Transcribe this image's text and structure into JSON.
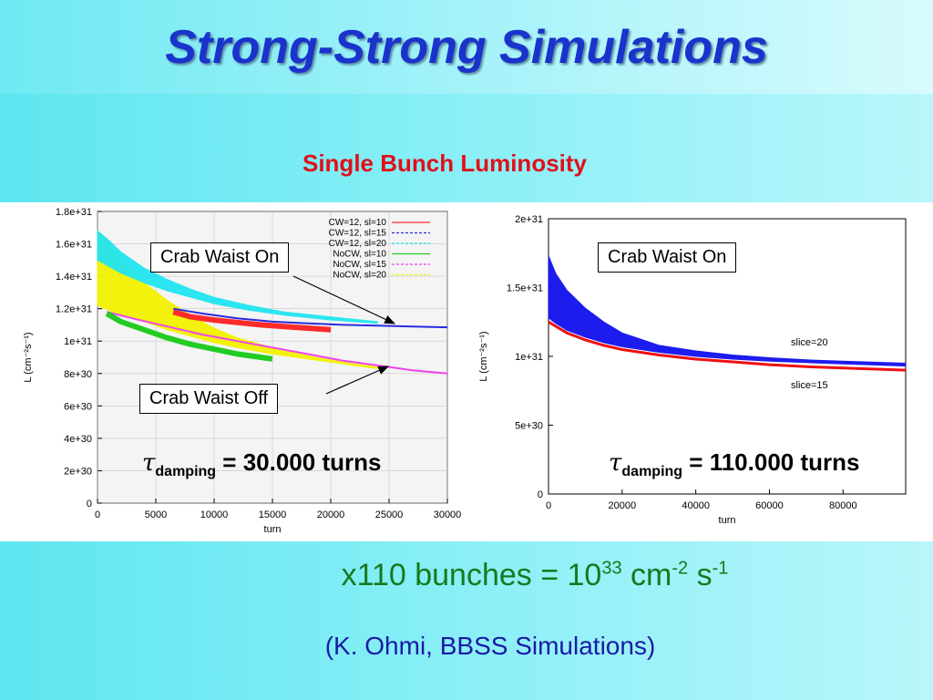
{
  "slide": {
    "title": "Strong-Strong Simulations",
    "subtitle": "Single Bunch Luminosity",
    "bunches": {
      "prefix": "x110 bunches = 10",
      "exp1": "33",
      "mid1": " cm",
      "exp2": "-2",
      "mid2": " s",
      "exp3": "-1"
    },
    "credit": "(K. Ohmi, BBSS Simulations)"
  },
  "annotations": {
    "left_on": "Crab Waist On",
    "left_off": "Crab Waist Off",
    "right_on": "Crab Waist On",
    "left_tau": {
      "symbol": "τ",
      "sub": "damping",
      "rest": " = 30.000 turns"
    },
    "right_tau": {
      "symbol": "τ",
      "sub": "damping",
      "rest": " = 110.000 turns"
    }
  },
  "chart_data": [
    {
      "type": "line",
      "xlabel": "turn",
      "ylabel": "L (cm⁻²s⁻¹)",
      "xlim": [
        0,
        30000
      ],
      "ylim": [
        0,
        1.8e+31
      ],
      "xticks": [
        0,
        5000,
        10000,
        15000,
        20000,
        25000,
        30000
      ],
      "xtick_labels": [
        "0",
        "5000",
        "10000",
        "15000",
        "20000",
        "25000",
        "30000"
      ],
      "yticks": [
        0,
        2e+30,
        4e+30,
        6e+30,
        8e+30,
        1e+31,
        1.2e+31,
        1.4e+31,
        1.6e+31,
        1.8e+31
      ],
      "ytick_labels": [
        "0",
        "2e+30",
        "4e+30",
        "6e+30",
        "8e+30",
        "1e+31",
        "1.2e+31",
        "1.4e+31",
        "1.6e+31",
        "1.8e+31"
      ],
      "legend_position": "top-right",
      "series": [
        {
          "name": "CW=12, sl=10",
          "color": "#ff2a2a",
          "band": false,
          "x": [
            6500,
            8000,
            10000,
            12000,
            14000,
            16000,
            18000,
            20000
          ],
          "y": [
            1.18e+31,
            1.15e+31,
            1.13e+31,
            1.115e+31,
            1.1e+31,
            1.09e+31,
            1.08e+31,
            1.07e+31
          ]
        },
        {
          "name": "CW=12, sl=15",
          "color": "#2a2ae0",
          "band": false,
          "x": [
            6500,
            9000,
            12000,
            15000,
            18000,
            21000,
            24000,
            27000,
            30000
          ],
          "y": [
            1.2e+31,
            1.17e+31,
            1.14e+31,
            1.12e+31,
            1.11e+31,
            1.1e+31,
            1.095e+31,
            1.09e+31,
            1.085e+31
          ]
        },
        {
          "name": "CW=12, sl=20",
          "color": "#22e5f0",
          "band": true,
          "x": [
            0,
            1000,
            2000,
            4000,
            6000,
            8000,
            10000,
            13000,
            16000,
            20000,
            24000
          ],
          "y_hi": [
            1.68e+31,
            1.62e+31,
            1.55e+31,
            1.45e+31,
            1.38e+31,
            1.32e+31,
            1.27e+31,
            1.22e+31,
            1.18e+31,
            1.15e+31,
            1.12e+31
          ],
          "y_lo": [
            1.5e+31,
            1.46e+31,
            1.42e+31,
            1.36e+31,
            1.31e+31,
            1.27e+31,
            1.23e+31,
            1.19e+31,
            1.16e+31,
            1.13e+31,
            1.11e+31
          ]
        },
        {
          "name": "NoCW, sl=10",
          "color": "#22cc22",
          "band": false,
          "x": [
            800,
            2000,
            4000,
            6000,
            8000,
            10000,
            12000,
            14000,
            15000
          ],
          "y": [
            1.17e+31,
            1.12e+31,
            1.07e+31,
            1.02e+31,
            9.8e+30,
            9.5e+30,
            9.2e+30,
            9e+30,
            8.9e+30
          ]
        },
        {
          "name": "NoCW, sl=15",
          "color": "#ee44ee",
          "band": false,
          "x": [
            800,
            3000,
            6000,
            9000,
            12000,
            15000,
            18000,
            21000,
            24000,
            27000,
            30000
          ],
          "y": [
            1.18e+31,
            1.14e+31,
            1.09e+31,
            1.04e+31,
            1e+31,
            9.6e+30,
            9.2e+30,
            8.8e+30,
            8.5e+30,
            8.2e+30,
            8e+30
          ]
        },
        {
          "name": "NoCW, sl=20",
          "color": "#f2f200",
          "band": true,
          "x": [
            0,
            1000,
            2000,
            4000,
            6000,
            8000,
            10000,
            12000,
            15000,
            18000,
            21000,
            24000
          ],
          "y_hi": [
            1.68e+31,
            1.6e+31,
            1.5e+31,
            1.36e+31,
            1.25e+31,
            1.16e+31,
            1.08e+31,
            1.02e+31,
            9.6e+30,
            9.1e+30,
            8.7e+30,
            8.4e+30
          ],
          "y_lo": [
            1.22e+31,
            1.19e+31,
            1.16e+31,
            1.12e+31,
            1.07e+31,
            1.03e+31,
            9.9e+30,
            9.6e+30,
            9.2e+30,
            8.9e+30,
            8.6e+30,
            8.3e+30
          ]
        }
      ]
    },
    {
      "type": "line",
      "xlabel": "turn",
      "ylabel": "L (cm⁻²s⁻¹)",
      "xlim": [
        0,
        97000
      ],
      "ylim": [
        0,
        2e+31
      ],
      "xticks": [
        0,
        20000,
        40000,
        60000,
        80000
      ],
      "xtick_labels": [
        "0",
        "20000",
        "40000",
        "60000",
        "80000"
      ],
      "yticks": [
        0,
        5e+30,
        1e+31,
        1.5e+31,
        2e+31
      ],
      "ytick_labels": [
        "0",
        "5e+30",
        "1e+31",
        "1.5e+31",
        "2e+31"
      ],
      "series": [
        {
          "name": "slice=20",
          "color": "#1010ee",
          "band": true,
          "x": [
            0,
            2000,
            5000,
            10000,
            15000,
            20000,
            30000,
            40000,
            50000,
            60000,
            70000,
            80000,
            97000
          ],
          "y_hi": [
            1.73e+31,
            1.6e+31,
            1.48e+31,
            1.35e+31,
            1.25e+31,
            1.17e+31,
            1.08e+31,
            1.04e+31,
            1.01e+31,
            9.9e+30,
            9.75e+30,
            9.65e+30,
            9.5e+30
          ],
          "y_lo": [
            1.28e+31,
            1.24e+31,
            1.19e+31,
            1.14e+31,
            1.1e+31,
            1.07e+31,
            1.03e+31,
            1e+31,
            9.8e+30,
            9.65e+30,
            9.55e+30,
            9.45e+30,
            9.3e+30
          ]
        },
        {
          "name": "slice=15",
          "color": "#ee1010",
          "band": false,
          "x": [
            0,
            5000,
            10000,
            15000,
            20000,
            30000,
            40000,
            50000,
            60000,
            70000,
            80000,
            97000
          ],
          "y": [
            1.25e+31,
            1.17e+31,
            1.12e+31,
            1.08e+31,
            1.05e+31,
            1.01e+31,
            9.8e+30,
            9.6e+30,
            9.4e+30,
            9.25e+30,
            9.15e+30,
            9e+30
          ]
        }
      ]
    }
  ]
}
